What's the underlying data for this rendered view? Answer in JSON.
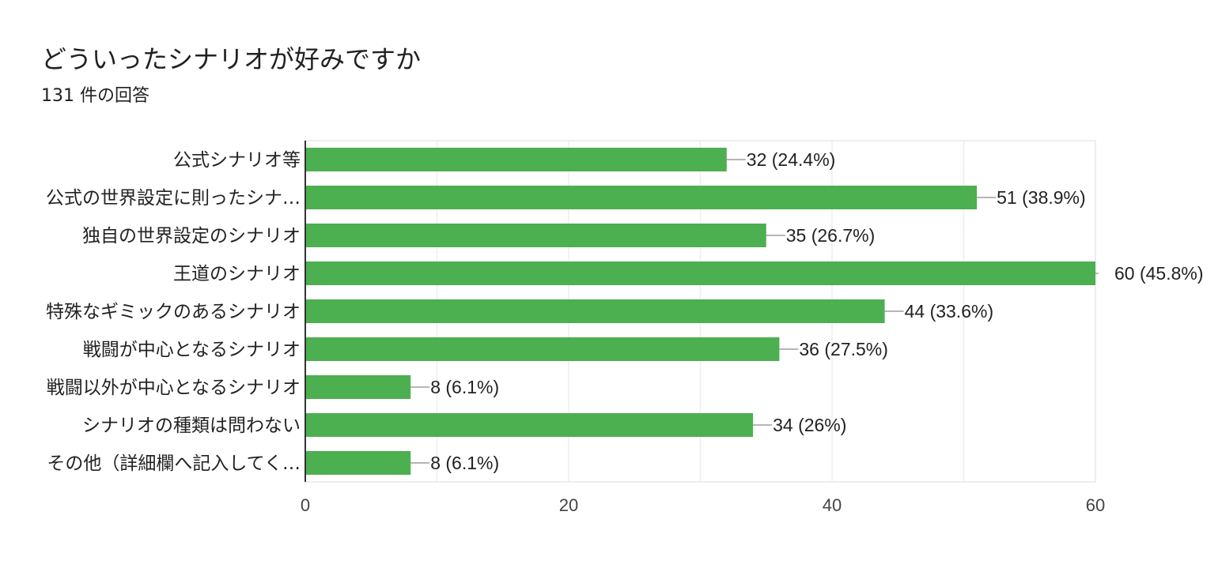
{
  "header": {
    "title": "どういったシナリオが好みですか",
    "subtitle": "131 件の回答"
  },
  "chart_data": {
    "type": "bar",
    "orientation": "horizontal",
    "categories": [
      "公式シナリオ等",
      "公式の世界設定に則ったシナ…",
      "独自の世界設定のシナリオ",
      "王道のシナリオ",
      "特殊なギミックのあるシナリオ",
      "戦闘が中心となるシナリオ",
      "戦闘以外が中心となるシナリオ",
      "シナリオの種類は問わない",
      "その他（詳細欄へ記入してく…"
    ],
    "values": [
      32,
      51,
      35,
      60,
      44,
      36,
      8,
      34,
      8
    ],
    "value_labels": [
      "32 (24.4%)",
      "51 (38.9%)",
      "35 (26.7%)",
      "60 (45.8%)",
      "44 (33.6%)",
      "36 (27.5%)",
      "8 (6.1%)",
      "34 (26%)",
      "8 (6.1%)"
    ],
    "xlim": [
      0,
      60
    ],
    "ticks": [
      0,
      20,
      40,
      60
    ],
    "tick_labels": [
      "0",
      "20",
      "40",
      "60"
    ],
    "grid": true,
    "bar_color": "#4caf50",
    "grid_color": "#eeeeee",
    "axis_color": "#333333",
    "leader_color": "#9e9e9e"
  }
}
